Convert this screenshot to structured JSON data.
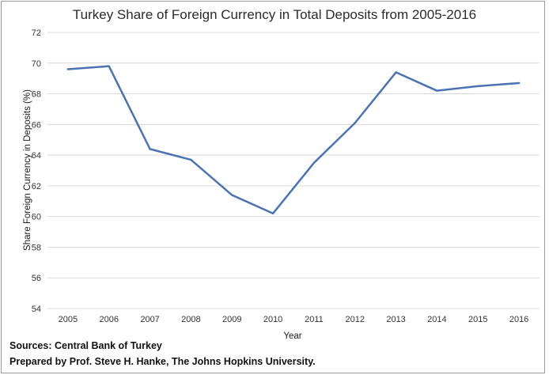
{
  "chart_data": {
    "type": "line",
    "title": "Turkey Share of Foreign Currency in Total Deposits from 2005-2016",
    "xlabel": "Year",
    "ylabel": "Share  Foreign Currency in Deposits (%)",
    "categories": [
      "2005",
      "2006",
      "2007",
      "2008",
      "2009",
      "2010",
      "2011",
      "2012",
      "2013",
      "2014",
      "2015",
      "2016"
    ],
    "series": [
      {
        "values": [
          69.6,
          69.8,
          64.4,
          63.7,
          61.4,
          60.2,
          63.5,
          66.1,
          69.4,
          68.2,
          68.5,
          68.7
        ]
      }
    ],
    "ylim": [
      54,
      72
    ],
    "y_ticks": [
      54,
      56,
      58,
      60,
      62,
      64,
      66,
      68,
      70,
      72
    ],
    "grid": "horizontal",
    "legend": "none",
    "line_color": "#4a73b5",
    "grid_color": "#d9d9d9"
  },
  "footer": {
    "source": "Sources:  Central Bank of Turkey",
    "credit": "Prepared by Prof. Steve H. Hanke, The Johns Hopkins University."
  }
}
